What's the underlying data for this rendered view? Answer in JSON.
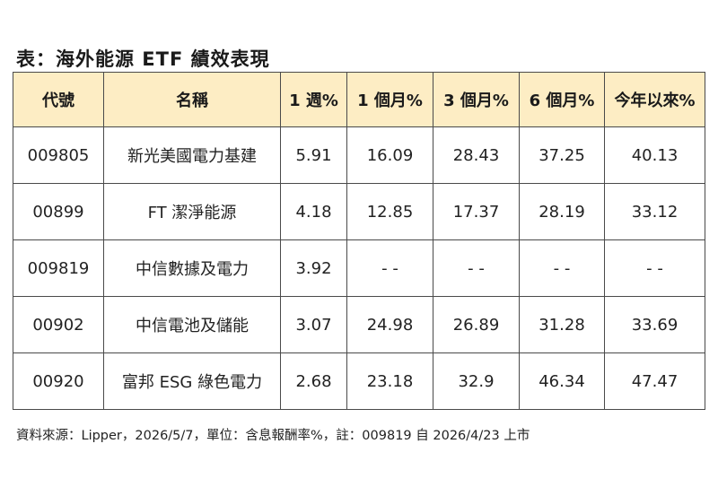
{
  "title": "表：海外能源 ETF 績效表現",
  "table": {
    "headers": [
      "代號",
      "名稱",
      "1 週%",
      "1 個月%",
      "3 個月%",
      "6 個月%",
      "今年以來%"
    ],
    "rows": [
      [
        "009805",
        "新光美國電力基建",
        "5.91",
        "16.09",
        "28.43",
        "37.25",
        "40.13"
      ],
      [
        "00899",
        "FT 潔淨能源",
        "4.18",
        "12.85",
        "17.37",
        "28.19",
        "33.12"
      ],
      [
        "009819",
        "中信數據及電力",
        "3.92",
        "- -",
        "- -",
        "- -",
        "- -"
      ],
      [
        "00902",
        "中信電池及儲能",
        "3.07",
        "24.98",
        "26.89",
        "31.28",
        "33.69"
      ],
      [
        "00920",
        "富邦 ESG 綠色電力",
        "2.68",
        "23.18",
        "32.9",
        "46.34",
        "47.47"
      ]
    ]
  },
  "note": "資料來源：Lipper，2026/5/7，單位：含息報酬率%，註：009819 自 2026/4/23 上市"
}
